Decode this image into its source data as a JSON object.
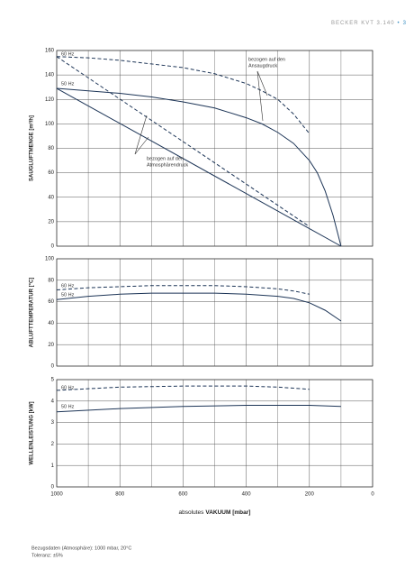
{
  "header": {
    "title": "BECKER KVT 3.140",
    "separator": "•",
    "page": "3"
  },
  "chart_data": [
    {
      "type": "line",
      "ylabel": "SAUGLUFTMENGE [m³/h]",
      "xlim": [
        1000,
        0
      ],
      "ylim": [
        0,
        160
      ],
      "yticks": [
        0,
        20,
        40,
        60,
        80,
        100,
        120,
        140,
        160
      ],
      "grid": true,
      "annotations": [
        "60 Hz",
        "50 Hz",
        "bezogen auf den",
        "Ansaugdruck",
        "bezogen auf den",
        "Atmosphärendruck"
      ],
      "series": [
        {
          "color": "#1d3557",
          "style": "dashed",
          "x": [
            1000,
            900,
            800,
            700,
            600,
            500,
            400,
            350,
            300,
            250,
            200
          ],
          "values": [
            155,
            154,
            152,
            149,
            146,
            141,
            133,
            127,
            120,
            108,
            92
          ]
        },
        {
          "color": "#1d3557",
          "style": "solid",
          "x": [
            1000,
            900,
            800,
            700,
            600,
            500,
            400,
            350,
            300,
            250,
            200,
            175,
            150,
            125,
            100
          ],
          "values": [
            129,
            127,
            125,
            122,
            118,
            113,
            105,
            100,
            93,
            84,
            70,
            60,
            45,
            25,
            0
          ]
        },
        {
          "color": "#1d3557",
          "style": "dashed",
          "x": [
            1000,
            200
          ],
          "values": [
            155,
            16
          ]
        },
        {
          "color": "#1d3557",
          "style": "solid",
          "x": [
            1000,
            100
          ],
          "values": [
            129,
            0
          ]
        }
      ]
    },
    {
      "type": "line",
      "ylabel": "ABLUFTTEMPERATUR [°C]",
      "xlim": [
        1000,
        0
      ],
      "ylim": [
        0,
        100
      ],
      "yticks": [
        0,
        20,
        40,
        60,
        80,
        100
      ],
      "grid": true,
      "annotations": [
        "60 Hz",
        "50 Hz"
      ],
      "series": [
        {
          "color": "#1d3557",
          "style": "dashed",
          "x": [
            1000,
            900,
            800,
            700,
            600,
            500,
            400,
            300,
            250,
            200
          ],
          "values": [
            71,
            73,
            74,
            75,
            75,
            75,
            74,
            72,
            70,
            67
          ]
        },
        {
          "color": "#1d3557",
          "style": "solid",
          "x": [
            1000,
            900,
            800,
            700,
            600,
            500,
            400,
            300,
            250,
            200,
            150,
            100
          ],
          "values": [
            62,
            65,
            67,
            68,
            68,
            68,
            67,
            65,
            63,
            59,
            52,
            42
          ]
        }
      ]
    },
    {
      "type": "line",
      "ylabel": "WELLENLEISTUNG [kW]",
      "xlabel": [
        "absolutes",
        "VAKUUM [mbar]"
      ],
      "xlim": [
        1000,
        0
      ],
      "xticks": [
        1000,
        800,
        600,
        400,
        200,
        0
      ],
      "ylim": [
        0,
        5
      ],
      "yticks": [
        0,
        1,
        2,
        3,
        4,
        5
      ],
      "grid": true,
      "annotations": [
        "60 Hz",
        "50 Hz"
      ],
      "series": [
        {
          "color": "#1d3557",
          "style": "dashed",
          "x": [
            1000,
            800,
            600,
            400,
            300,
            200
          ],
          "values": [
            4.5,
            4.65,
            4.7,
            4.7,
            4.65,
            4.55
          ]
        },
        {
          "color": "#1d3557",
          "style": "solid",
          "x": [
            1000,
            800,
            600,
            400,
            200,
            100
          ],
          "values": [
            3.5,
            3.65,
            3.75,
            3.8,
            3.8,
            3.75
          ]
        }
      ]
    }
  ],
  "footer": [
    "Bezugsdaten (Atmosphäre): 1000 mbar, 20°C",
    "Toleranz: ±5%"
  ]
}
